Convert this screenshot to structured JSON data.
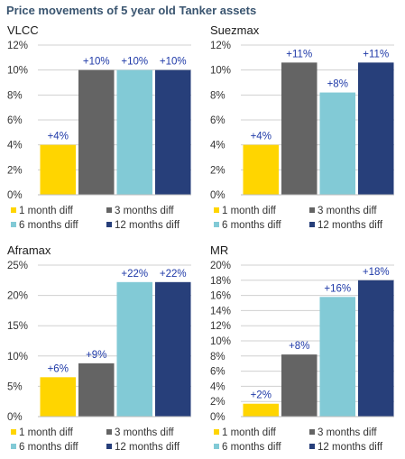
{
  "page": {
    "title": "Price movements of 5 year old Tanker assets"
  },
  "colors": {
    "1 month diff": "#FFD500",
    "3 months diff": "#646464",
    "6 months diff": "#82CAD6",
    "12 months diff": "#273F7A",
    "data_label": "#1f3aa8",
    "gridline": "#d0d0d0"
  },
  "chart_data": [
    {
      "type": "bar",
      "title": "VLCC",
      "categories": [
        "1 month diff",
        "3 months diff",
        "6 months diff",
        "12 months diff"
      ],
      "values": [
        4,
        10,
        10,
        10
      ],
      "data_labels": [
        "+4%",
        "+10%",
        "+10%",
        "+10%"
      ],
      "ylim": [
        0,
        12
      ],
      "yticks": [
        "0%",
        "2%",
        "4%",
        "6%",
        "8%",
        "10%",
        "12%"
      ],
      "grid": true,
      "legend": "bottom"
    },
    {
      "type": "bar",
      "title": "Suezmax",
      "categories": [
        "1 month diff",
        "3 months diff",
        "6 months diff",
        "12 months diff"
      ],
      "values": [
        4,
        10.6,
        8.2,
        10.6
      ],
      "data_labels": [
        "+4%",
        "+11%",
        "+8%",
        "+11%"
      ],
      "ylim": [
        0,
        12
      ],
      "yticks": [
        "0%",
        "2%",
        "4%",
        "6%",
        "8%",
        "10%",
        "12%"
      ],
      "grid": true,
      "legend": "bottom"
    },
    {
      "type": "bar",
      "title": "Aframax",
      "categories": [
        "1 month diff",
        "3 months diff",
        "6 months diff",
        "12 months diff"
      ],
      "values": [
        6.5,
        8.8,
        22.2,
        22.2
      ],
      "data_labels": [
        "+6%",
        "+9%",
        "+22%",
        "+22%"
      ],
      "ylim": [
        0,
        25
      ],
      "yticks": [
        "0%",
        "5%",
        "10%",
        "15%",
        "20%",
        "25%"
      ],
      "grid": true,
      "legend": "bottom"
    },
    {
      "type": "bar",
      "title": "MR",
      "categories": [
        "1 month diff",
        "3 months diff",
        "6 months diff",
        "12 months diff"
      ],
      "values": [
        1.7,
        8.2,
        15.8,
        18
      ],
      "data_labels": [
        "+2%",
        "+8%",
        "+16%",
        "+18%"
      ],
      "ylim": [
        0,
        20
      ],
      "yticks": [
        "0%",
        "2%",
        "4%",
        "6%",
        "8%",
        "10%",
        "12%",
        "14%",
        "16%",
        "18%",
        "20%"
      ],
      "grid": true,
      "legend": "bottom"
    }
  ]
}
